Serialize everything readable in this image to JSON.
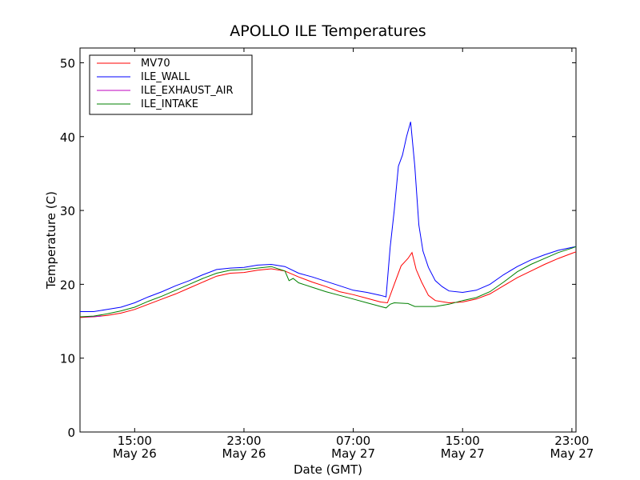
{
  "chart_data": {
    "type": "line",
    "title": "APOLLO ILE Temperatures",
    "xlabel": "Date (GMT)",
    "ylabel": "Temperature (C)",
    "xlim": [
      11.0,
      47.3
    ],
    "ylim": [
      0,
      52
    ],
    "legend_position": "top-left",
    "x_unit": "hours since 00:00 May 26 (GMT)",
    "x_ticks": [
      {
        "x": 15,
        "time": "15:00",
        "date": "May 26"
      },
      {
        "x": 23,
        "time": "23:00",
        "date": "May 26"
      },
      {
        "x": 31,
        "time": "07:00",
        "date": "May 27"
      },
      {
        "x": 39,
        "time": "15:00",
        "date": "May 27"
      },
      {
        "x": 47,
        "time": "23:00",
        "date": "May 27"
      }
    ],
    "y_ticks": [
      0,
      10,
      20,
      30,
      40,
      50
    ],
    "series": [
      {
        "name": "MV70",
        "color": "#ff0000",
        "x": [
          11.0,
          12.0,
          13.0,
          14.0,
          15.0,
          16.0,
          17.0,
          18.0,
          19.0,
          20.0,
          21.0,
          22.0,
          23.0,
          24.0,
          25.0,
          26.0,
          27.0,
          28.0,
          29.0,
          30.0,
          31.0,
          32.0,
          33.0,
          33.5,
          34.0,
          34.5,
          35.0,
          35.3,
          35.6,
          36.0,
          36.5,
          37.0,
          38.0,
          39.0,
          40.0,
          41.0,
          42.0,
          43.0,
          44.0,
          45.0,
          46.0,
          47.0,
          47.3
        ],
        "y": [
          15.5,
          15.6,
          15.8,
          16.1,
          16.6,
          17.3,
          18.0,
          18.7,
          19.5,
          20.3,
          21.1,
          21.5,
          21.6,
          21.9,
          22.1,
          21.8,
          21.0,
          20.3,
          19.7,
          19.0,
          18.6,
          18.1,
          17.6,
          17.5,
          20.0,
          22.5,
          23.5,
          24.3,
          22.0,
          20.3,
          18.5,
          17.8,
          17.5,
          17.6,
          18.0,
          18.7,
          19.8,
          20.9,
          21.8,
          22.7,
          23.5,
          24.2,
          24.4
        ]
      },
      {
        "name": "ILE_WALL",
        "color": "#0000ff",
        "x": [
          11.0,
          12.0,
          13.0,
          14.0,
          15.0,
          16.0,
          17.0,
          18.0,
          19.0,
          20.0,
          21.0,
          22.0,
          23.0,
          24.0,
          25.0,
          26.0,
          27.0,
          28.0,
          29.0,
          30.0,
          31.0,
          32.0,
          33.0,
          33.4,
          33.7,
          34.0,
          34.3,
          34.6,
          34.9,
          35.2,
          35.5,
          35.8,
          36.1,
          36.5,
          37.0,
          37.5,
          38.0,
          39.0,
          40.0,
          41.0,
          42.0,
          43.0,
          44.0,
          45.0,
          46.0,
          47.0,
          47.3
        ],
        "y": [
          16.3,
          16.3,
          16.6,
          16.9,
          17.5,
          18.3,
          19.0,
          19.8,
          20.5,
          21.3,
          22.0,
          22.2,
          22.3,
          22.6,
          22.7,
          22.4,
          21.5,
          21.0,
          20.4,
          19.8,
          19.2,
          18.9,
          18.5,
          18.3,
          25.0,
          30.0,
          36.0,
          37.5,
          40.0,
          42.0,
          36.0,
          28.0,
          24.5,
          22.3,
          20.5,
          19.7,
          19.1,
          18.9,
          19.2,
          20.0,
          21.3,
          22.4,
          23.3,
          24.0,
          24.6,
          25.0,
          25.1
        ]
      },
      {
        "name": "ILE_EXHAUST_AIR",
        "color": "#bf00bf",
        "x": [
          11.0,
          11.8,
          12.6
        ],
        "y": [
          15.6,
          15.6,
          15.7
        ]
      },
      {
        "name": "ILE_INTAKE",
        "color": "#008000",
        "x": [
          11.0,
          12.0,
          13.0,
          14.0,
          15.0,
          16.0,
          17.0,
          18.0,
          19.0,
          20.0,
          21.0,
          22.0,
          23.0,
          24.0,
          25.0,
          26.0,
          26.3,
          26.6,
          27.0,
          28.0,
          29.0,
          30.0,
          31.0,
          32.0,
          33.0,
          33.4,
          33.7,
          34.0,
          35.0,
          35.5,
          36.0,
          37.0,
          38.0,
          39.0,
          40.0,
          41.0,
          42.0,
          43.0,
          44.0,
          45.0,
          46.0,
          47.0,
          47.3
        ],
        "y": [
          15.6,
          15.7,
          16.0,
          16.4,
          16.9,
          17.7,
          18.4,
          19.2,
          20.0,
          20.8,
          21.5,
          21.9,
          22.0,
          22.2,
          22.4,
          21.8,
          20.5,
          20.8,
          20.2,
          19.6,
          19.0,
          18.5,
          18.0,
          17.5,
          17.0,
          16.8,
          17.3,
          17.5,
          17.4,
          17.0,
          17.0,
          17.0,
          17.3,
          17.8,
          18.2,
          19.0,
          20.3,
          21.7,
          22.7,
          23.5,
          24.3,
          24.9,
          25.1
        ]
      }
    ]
  }
}
